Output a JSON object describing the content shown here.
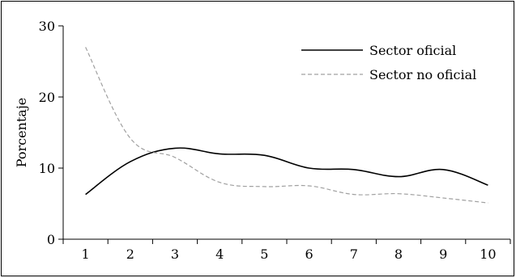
{
  "chart_data": {
    "type": "line",
    "title": "",
    "xlabel": "",
    "ylabel": "Porcentaje",
    "x": [
      1,
      2,
      3,
      4,
      5,
      6,
      7,
      8,
      9,
      10
    ],
    "xlim": [
      0.5,
      10.5
    ],
    "ylim": [
      0,
      30
    ],
    "yticks": [
      0,
      10,
      20,
      30
    ],
    "grid": false,
    "legend_position": "top-right",
    "series": [
      {
        "name": "Sector oficial",
        "color": "#000000",
        "style": "solid",
        "values": [
          6.3,
          10.9,
          12.8,
          12.0,
          11.8,
          10.0,
          9.8,
          8.8,
          9.8,
          7.6
        ]
      },
      {
        "name": "Sector no oficial",
        "color": "#a0a0a0",
        "style": "dashed",
        "values": [
          27.0,
          14.2,
          11.5,
          8.0,
          7.4,
          7.5,
          6.3,
          6.4,
          5.8,
          5.1
        ]
      }
    ]
  }
}
